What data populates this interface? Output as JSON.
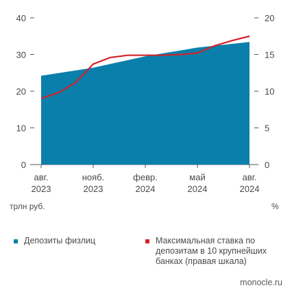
{
  "colors": {
    "area": "#0a7fab",
    "line": "#d3222a",
    "axis": "#555555",
    "text": "#4a4a4a"
  },
  "units": {
    "left": "трлн руб.",
    "right": "%"
  },
  "legend": {
    "deposits": "Депозиты физлиц",
    "rate": "Максимальная ставка по депозитам в 10 крупнейших банках (правая шкала)"
  },
  "source": "monocle.ru",
  "chart_data": {
    "type": "area",
    "x_ticks": [
      {
        "month": 0,
        "line1": "авг.",
        "line2": "2023"
      },
      {
        "month": 3,
        "line1": "нояб.",
        "line2": "2023"
      },
      {
        "month": 6,
        "line1": "февр.",
        "line2": "2024"
      },
      {
        "month": 9,
        "line1": "май",
        "line2": "2024"
      },
      {
        "month": 12,
        "line1": "авг.",
        "line2": "2024"
      }
    ],
    "y_left": {
      "min": 0,
      "max": 40,
      "ticks": [
        0,
        10,
        20,
        30,
        40
      ],
      "label": "трлн руб."
    },
    "y_right": {
      "min": 0,
      "max": 20,
      "ticks": [
        0,
        5,
        10,
        15,
        20
      ],
      "label": "%"
    },
    "series": [
      {
        "name": "Депозиты физлиц",
        "type": "area",
        "axis": "left",
        "x": [
          0,
          3,
          6,
          9,
          12
        ],
        "values": [
          24.2,
          26.4,
          29.5,
          31.9,
          33.4
        ]
      },
      {
        "name": "Максимальная ставка по депозитам в 10 крупнейших банках (правая шкала)",
        "type": "line",
        "axis": "right",
        "x": [
          0,
          1,
          2,
          3,
          4,
          5,
          6,
          7,
          8,
          9,
          10,
          11,
          12
        ],
        "values": [
          9.0,
          9.8,
          11.2,
          13.7,
          14.6,
          14.9,
          14.9,
          14.9,
          15.0,
          15.2,
          16.2,
          16.9,
          17.5
        ]
      }
    ]
  }
}
